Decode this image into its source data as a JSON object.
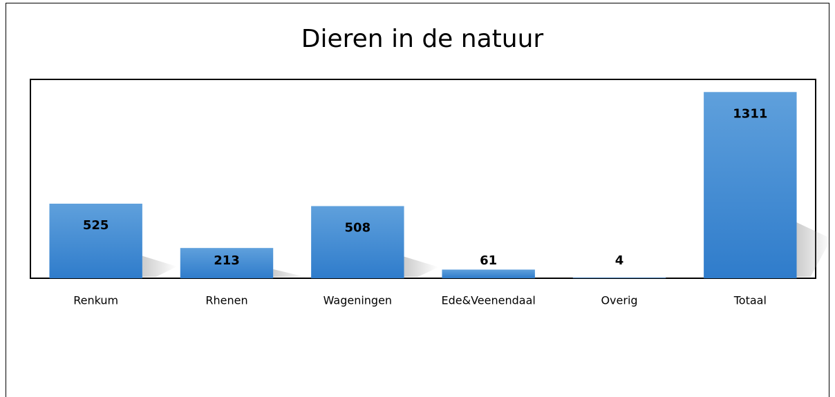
{
  "chart_data": {
    "type": "bar",
    "title": "Dieren in de natuur",
    "categories": [
      "Renkum",
      "Rhenen",
      "Wageningen",
      "Ede&Veenendaal",
      "Overig",
      "Totaal"
    ],
    "values": [
      525,
      213,
      508,
      61,
      4,
      1311
    ],
    "color": "#3f88d3",
    "ylim": [
      0,
      1400
    ]
  }
}
